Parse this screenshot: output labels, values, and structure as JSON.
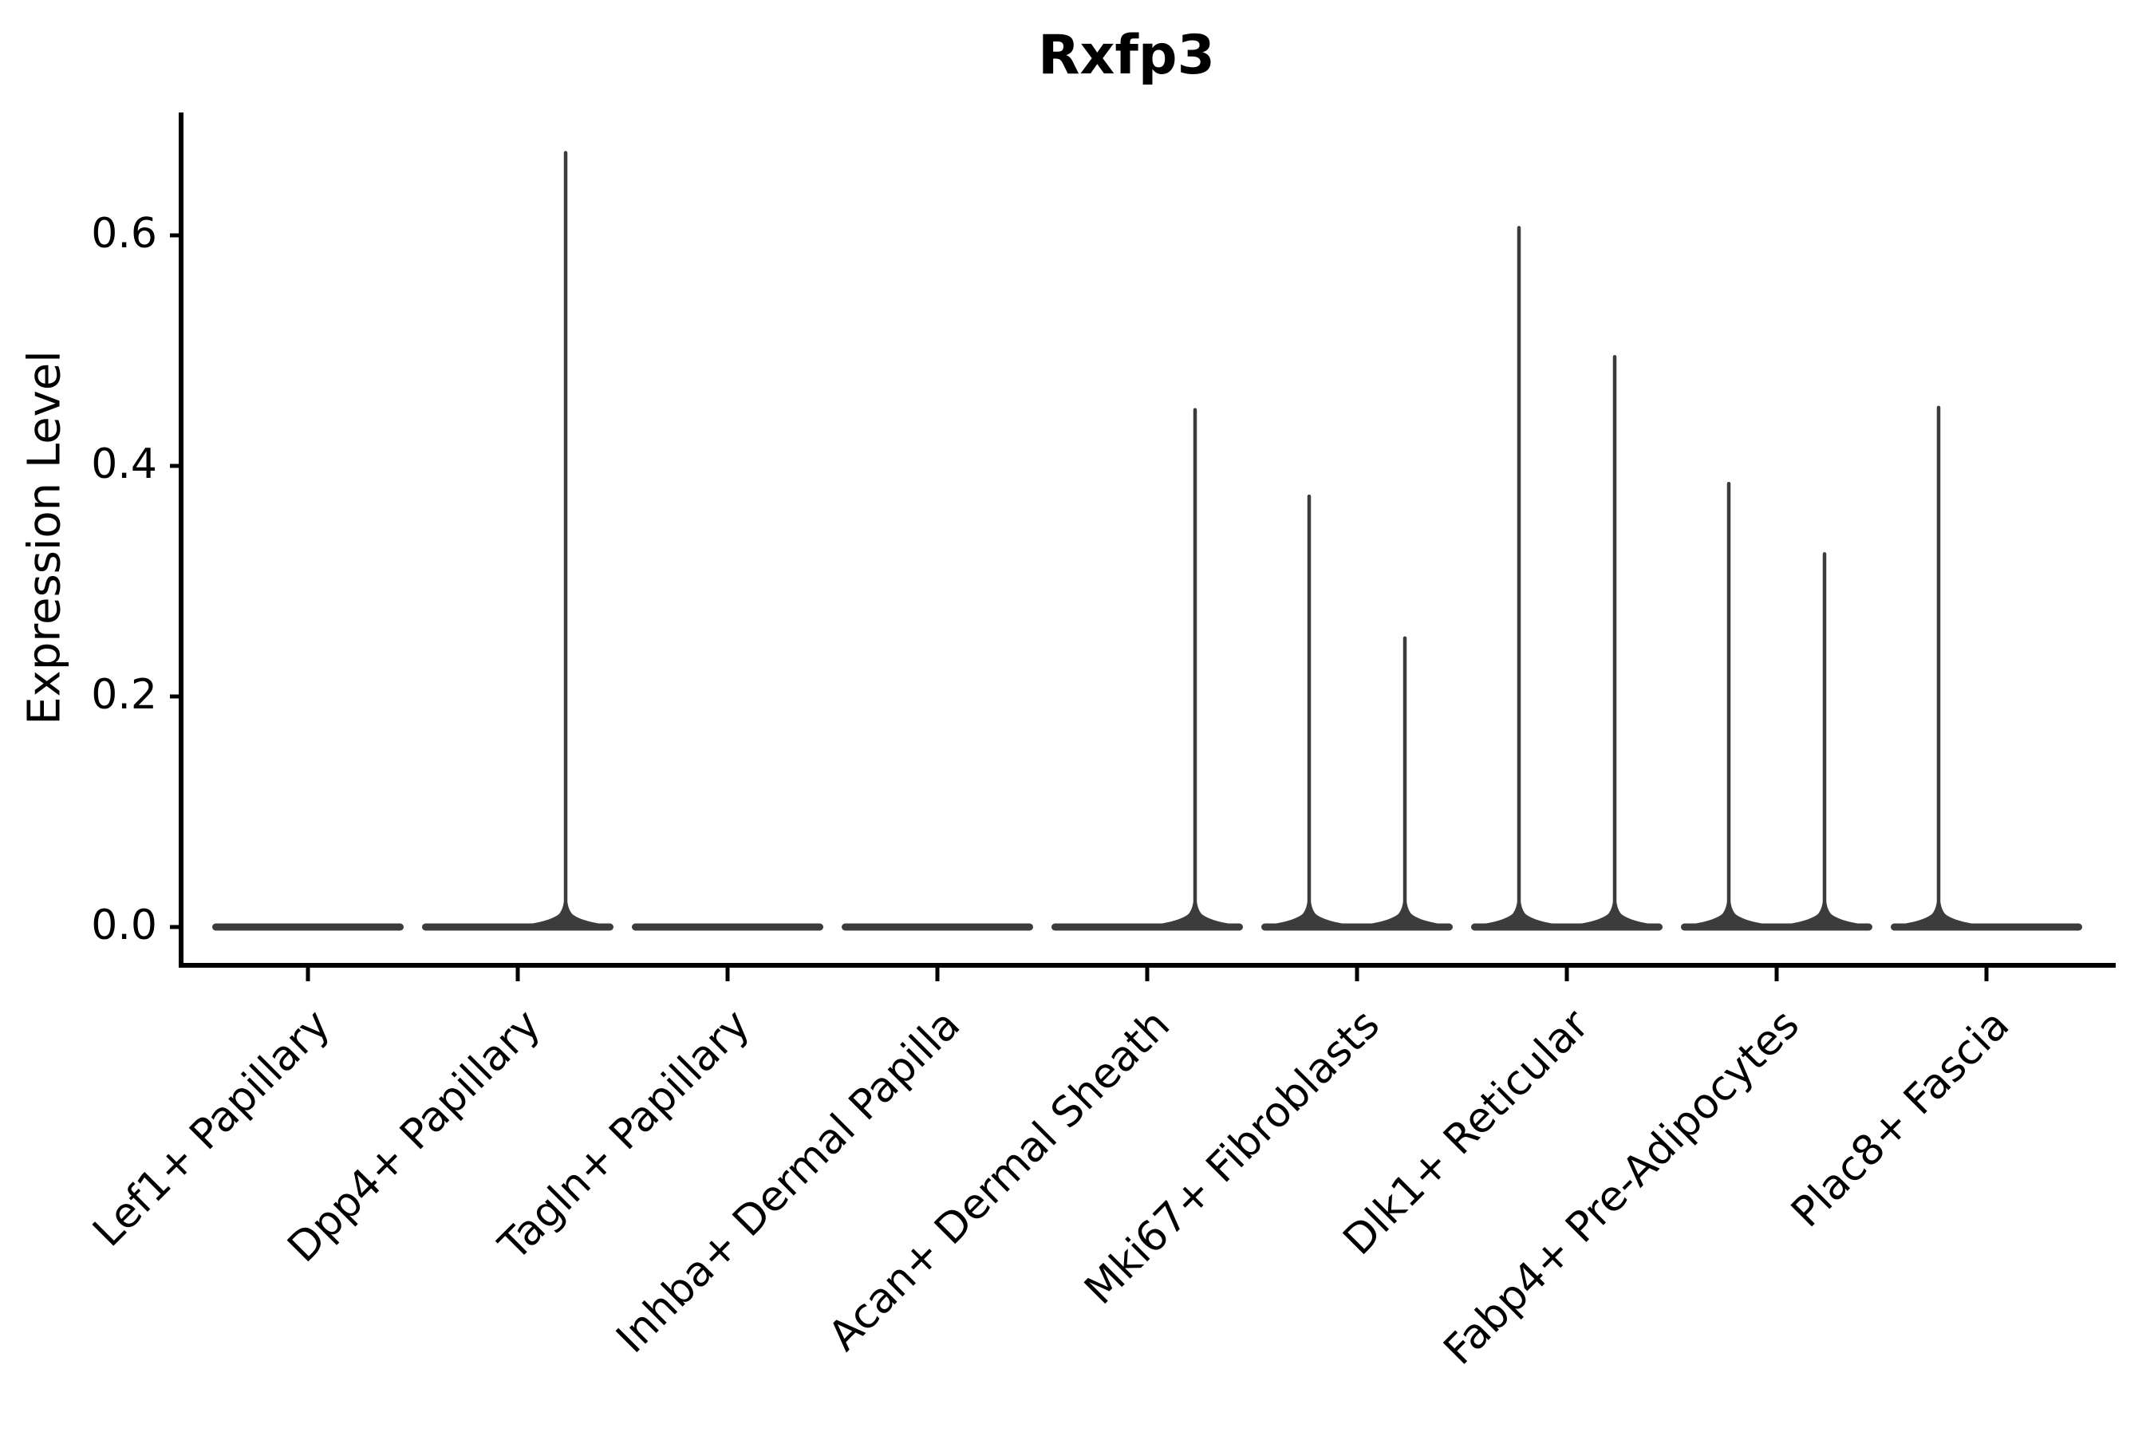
{
  "colors": {
    "violin": "#3c3c3c",
    "axis": "#000000",
    "text": "#000000",
    "background": "#ffffff"
  },
  "chart_data": {
    "type": "violin",
    "title": "Rxfp3",
    "xlabel": "",
    "ylabel": "Expression Level",
    "yticks": [
      "0.0",
      "0.2",
      "0.4",
      "0.6"
    ],
    "ytick_values": [
      0.0,
      0.2,
      0.4,
      0.6
    ],
    "ylim": [
      -0.033,
      0.707
    ],
    "grid": false,
    "legend": false,
    "violins_per_category": 2,
    "categories": [
      "Lef1+ Papillary",
      "Dpp4+ Papillary",
      "Tagln+ Papillary",
      "Inhba+ Dermal Papilla",
      "Acan+ Dermal Sheath",
      "Mki67+ Fibroblasts",
      "Dlk1+ Reticular",
      "Fabp4+ Pre-Adipocytes",
      "Plac8+ Fascia"
    ],
    "series": [
      {
        "category": "Lef1+ Papillary",
        "bulk_at_zero": true,
        "spikes": []
      },
      {
        "category": "Dpp4+ Papillary",
        "bulk_at_zero": true,
        "spikes": [
          {
            "slot": 1,
            "max": 0.673
          }
        ]
      },
      {
        "category": "Tagln+ Papillary",
        "bulk_at_zero": true,
        "spikes": []
      },
      {
        "category": "Inhba+ Dermal Papilla",
        "bulk_at_zero": true,
        "spikes": []
      },
      {
        "category": "Acan+ Dermal Sheath",
        "bulk_at_zero": true,
        "spikes": [
          {
            "slot": 1,
            "max": 0.45
          }
        ]
      },
      {
        "category": "Mki67+ Fibroblasts",
        "bulk_at_zero": true,
        "spikes": [
          {
            "slot": 0,
            "max": 0.375
          },
          {
            "slot": 1,
            "max": 0.252
          }
        ]
      },
      {
        "category": "Dlk1+ Reticular",
        "bulk_at_zero": true,
        "spikes": [
          {
            "slot": 0,
            "max": 0.608
          },
          {
            "slot": 1,
            "max": 0.496
          }
        ]
      },
      {
        "category": "Fabp4+ Pre-Adipocytes",
        "bulk_at_zero": true,
        "spikes": [
          {
            "slot": 0,
            "max": 0.386
          },
          {
            "slot": 1,
            "max": 0.325
          }
        ]
      },
      {
        "category": "Plac8+ Fascia",
        "bulk_at_zero": true,
        "spikes": [
          {
            "slot": 0,
            "max": 0.452
          }
        ]
      }
    ]
  }
}
